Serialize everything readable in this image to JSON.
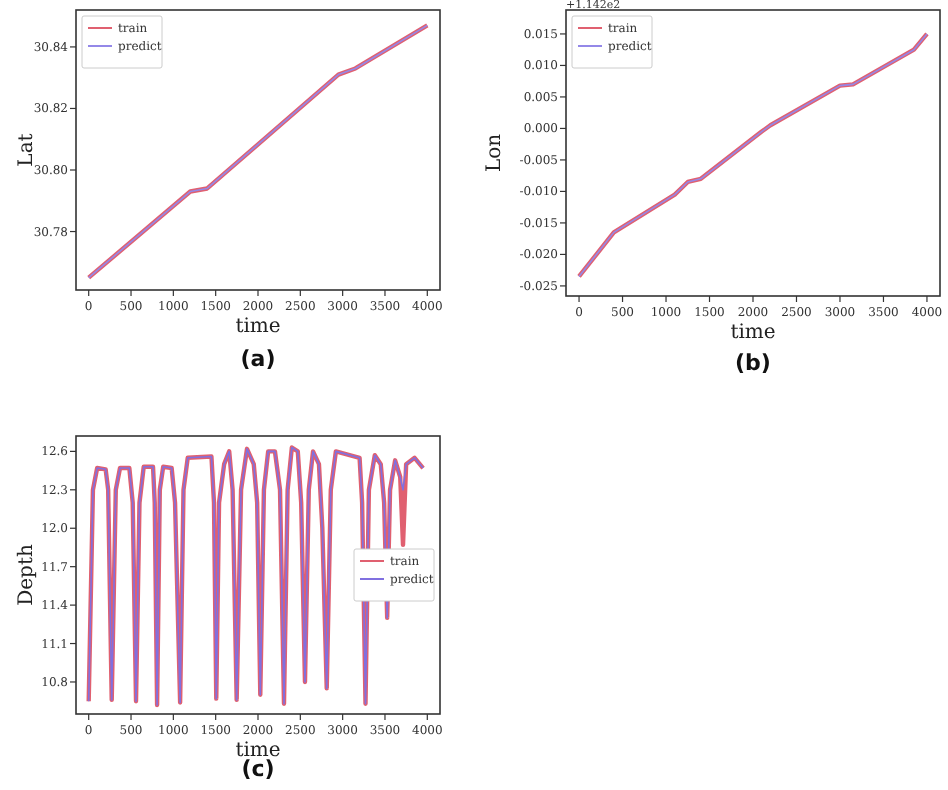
{
  "chart_data": [
    {
      "type": "line",
      "xlabel": "time",
      "ylabel": "Lat",
      "annotations": [
        "(a)"
      ],
      "xlim": [
        -150,
        4150
      ],
      "ylim": [
        30.761,
        30.852
      ],
      "xticks": [
        0,
        500,
        1000,
        1500,
        2000,
        2500,
        3000,
        3500,
        4000
      ],
      "yticks": [
        30.78,
        {
          "value": 30.8,
          "label": "30.80"
        },
        30.82,
        30.84
      ],
      "legend": "top left",
      "grid": false,
      "series": [
        {
          "name": "train",
          "color": "#e06070",
          "x": [
            0,
            1200,
            1400,
            2950,
            3150,
            4000
          ],
          "values": [
            30.765,
            30.793,
            30.794,
            30.831,
            30.833,
            30.847
          ]
        },
        {
          "name": "predict",
          "color": "#9488e8",
          "x": [
            0,
            1200,
            1400,
            2950,
            3150,
            4000
          ],
          "values": [
            30.765,
            30.793,
            30.794,
            30.831,
            30.833,
            30.847
          ]
        }
      ]
    },
    {
      "type": "line",
      "xlabel": "time",
      "ylabel": "Lon",
      "annotations": [
        "(b)",
        "+1.142e2"
      ],
      "xlim": [
        -150,
        4150
      ],
      "ylim": [
        -0.0266,
        0.0188
      ],
      "xticks": [
        0,
        500,
        1000,
        1500,
        2000,
        2500,
        3000,
        3500,
        4000
      ],
      "yticks": [
        -0.025,
        {
          "value": -0.02,
          "label": "-0.020"
        },
        -0.015,
        {
          "value": -0.01,
          "label": "-0.010"
        },
        -0.005,
        {
          "value": 0,
          "label": "0.000"
        },
        0.005,
        {
          "value": 0.01,
          "label": "0.010"
        },
        0.015
      ],
      "legend": "top left",
      "grid": false,
      "series": [
        {
          "name": "train",
          "color": "#e06070",
          "x": [
            0,
            400,
            1100,
            1250,
            1400,
            2100,
            2200,
            3000,
            3150,
            3850,
            4000
          ],
          "values": [
            -0.0235,
            -0.0165,
            -0.0105,
            -0.0085,
            -0.008,
            -0.0005,
            0.0005,
            0.0068,
            0.007,
            0.0125,
            0.015
          ]
        },
        {
          "name": "predict",
          "color": "#9488e8",
          "x": [
            0,
            400,
            1100,
            1250,
            1400,
            2100,
            2200,
            3000,
            3150,
            3850,
            4000
          ],
          "values": [
            -0.0235,
            -0.0165,
            -0.0105,
            -0.0085,
            -0.008,
            -0.0005,
            0.0005,
            0.0068,
            0.007,
            0.0125,
            0.015
          ]
        }
      ]
    },
    {
      "type": "line",
      "xlabel": "time",
      "ylabel": "Depth",
      "annotations": [
        "(c)"
      ],
      "xlim": [
        -150,
        4150
      ],
      "ylim": [
        10.55,
        12.72
      ],
      "xticks": [
        0,
        500,
        1000,
        1500,
        2000,
        2500,
        3000,
        3500,
        4000
      ],
      "yticks": [
        10.8,
        11.1,
        11.4,
        11.7,
        {
          "value": 12,
          "label": "12.0"
        },
        12.3,
        12.6
      ],
      "legend": "right",
      "grid": false,
      "series": [
        {
          "name": "train",
          "color": "#e06070",
          "x": [
            0,
            50,
            100,
            200,
            230,
            272,
            320,
            370,
            480,
            520,
            559,
            600,
            650,
            760,
            780,
            808,
            840,
            880,
            980,
            1020,
            1080,
            1120,
            1170,
            1450,
            1480,
            1507,
            1540,
            1600,
            1660,
            1700,
            1748,
            1800,
            1870,
            1950,
            1990,
            2027,
            2070,
            2120,
            2200,
            2260,
            2307,
            2350,
            2400,
            2470,
            2510,
            2555,
            2600,
            2650,
            2720,
            2760,
            2812,
            2860,
            2920,
            3200,
            3230,
            3270,
            3310,
            3380,
            3450,
            3490,
            3526,
            3560,
            3620,
            3680,
            3713,
            3750,
            3850,
            3950
          ],
          "values": [
            10.65,
            12.3,
            12.47,
            12.46,
            12.3,
            10.66,
            12.3,
            12.47,
            12.47,
            12.2,
            10.65,
            12.2,
            12.48,
            12.48,
            12.2,
            10.62,
            12.3,
            12.48,
            12.47,
            12.2,
            10.64,
            12.3,
            12.55,
            12.56,
            12.2,
            10.67,
            12.2,
            12.5,
            12.6,
            12.3,
            10.66,
            12.3,
            12.62,
            12.5,
            12.2,
            10.7,
            12.3,
            12.6,
            12.6,
            12.3,
            10.63,
            12.3,
            12.63,
            12.6,
            12.2,
            10.8,
            12.3,
            12.6,
            12.5,
            12.0,
            10.75,
            12.3,
            12.6,
            12.55,
            12.2,
            10.63,
            12.3,
            12.57,
            12.5,
            12.2,
            11.3,
            12.3,
            12.53,
            12.4,
            11.87,
            12.5,
            12.55,
            12.47
          ]
        },
        {
          "name": "predict",
          "color": "#8070e0",
          "x": [
            0,
            50,
            100,
            200,
            230,
            272,
            320,
            370,
            480,
            520,
            559,
            600,
            650,
            760,
            780,
            808,
            840,
            880,
            980,
            1020,
            1080,
            1120,
            1170,
            1450,
            1480,
            1507,
            1540,
            1600,
            1660,
            1700,
            1748,
            1800,
            1870,
            1950,
            1990,
            2027,
            2070,
            2120,
            2200,
            2260,
            2307,
            2350,
            2400,
            2470,
            2510,
            2555,
            2600,
            2650,
            2720,
            2760,
            2812,
            2860,
            2920,
            3200,
            3230,
            3270,
            3310,
            3380,
            3450,
            3490,
            3526,
            3560,
            3620,
            3680,
            3713,
            3750,
            3850,
            3950
          ],
          "values": [
            10.65,
            12.3,
            12.47,
            12.46,
            12.3,
            10.66,
            12.3,
            12.47,
            12.47,
            12.2,
            10.65,
            12.2,
            12.48,
            12.48,
            12.2,
            10.62,
            12.3,
            12.48,
            12.47,
            12.2,
            10.64,
            12.3,
            12.55,
            12.56,
            12.2,
            10.67,
            12.2,
            12.5,
            12.6,
            12.3,
            10.66,
            12.3,
            12.62,
            12.5,
            12.2,
            10.7,
            12.3,
            12.6,
            12.6,
            12.3,
            10.63,
            12.3,
            12.63,
            12.6,
            12.2,
            10.8,
            12.3,
            12.6,
            12.5,
            12.0,
            10.75,
            12.3,
            12.6,
            12.55,
            12.2,
            10.63,
            12.3,
            12.57,
            12.5,
            12.2,
            11.3,
            12.3,
            12.53,
            12.4,
            12.3,
            12.5,
            12.55,
            12.47
          ]
        }
      ]
    }
  ]
}
